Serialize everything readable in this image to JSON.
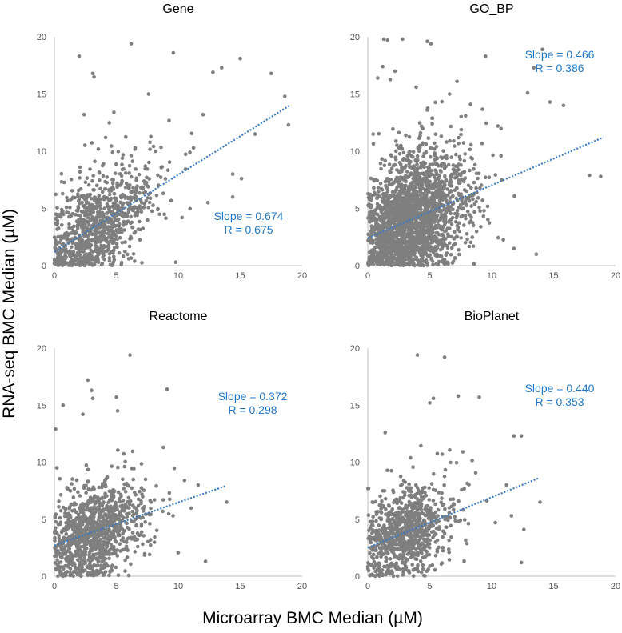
{
  "figure": {
    "ylabel": "RNA-seq BMC Median (µM)",
    "xlabel": "Microarray BMC Median (µM)",
    "colors": {
      "points": "#7f7f7f",
      "trend": "#3a7cc4",
      "stats": "#1f77c8",
      "axis": "#bfbfbf"
    }
  },
  "chart_data": [
    {
      "type": "scatter",
      "title": "Gene",
      "xlim": [
        0,
        20
      ],
      "ylim": [
        0,
        20
      ],
      "xticks": [
        0,
        5,
        10,
        15,
        20
      ],
      "yticks": [
        0,
        5,
        10,
        15,
        20
      ],
      "slope_text": "Slope = 0.674",
      "r_text": "R = 0.675",
      "trend": {
        "x": [
          0,
          19
        ],
        "y": [
          1.2,
          14.0
        ]
      },
      "cloud": {
        "count": 900,
        "seed": 11,
        "x_mean": 3.5,
        "x_sd": 2.6,
        "noise": 2.4
      },
      "points": [
        [
          6.2,
          19.4
        ],
        [
          9.6,
          18.6
        ],
        [
          2.0,
          18.3
        ],
        [
          3.1,
          16.8
        ],
        [
          3.2,
          16.5
        ],
        [
          15.0,
          18.1
        ],
        [
          13.5,
          17.3
        ],
        [
          12.8,
          16.9
        ],
        [
          17.5,
          16.8
        ],
        [
          2.4,
          13.2
        ],
        [
          4.8,
          13.4
        ],
        [
          7.6,
          15.0
        ],
        [
          12.0,
          13.2
        ],
        [
          16.2,
          11.5
        ],
        [
          18.9,
          12.3
        ],
        [
          18.6,
          14.8
        ],
        [
          14.4,
          8.0
        ],
        [
          15.1,
          7.6
        ],
        [
          12.4,
          5.5
        ],
        [
          9.8,
          0.3
        ],
        [
          6.0,
          0.6
        ],
        [
          5.4,
          0.1
        ],
        [
          10.3,
          4.2
        ],
        [
          14.4,
          6.0
        ]
      ]
    },
    {
      "type": "scatter",
      "title": "GO_BP",
      "xlim": [
        0,
        20
      ],
      "ylim": [
        0,
        20
      ],
      "xticks": [
        0,
        5,
        10,
        15,
        20
      ],
      "yticks": [
        0,
        5,
        10,
        15,
        20
      ],
      "slope_text": "Slope = 0.466",
      "r_text": "R = 0.386",
      "trend": {
        "x": [
          0,
          19
        ],
        "y": [
          2.4,
          11.2
        ]
      },
      "cloud": {
        "count": 2200,
        "seed": 23,
        "x_mean": 3.5,
        "x_sd": 2.4,
        "noise": 3.0
      },
      "points": [
        [
          1.3,
          19.8
        ],
        [
          1.6,
          19.7
        ],
        [
          2.8,
          19.8
        ],
        [
          5.1,
          19.4
        ],
        [
          1.2,
          17.4
        ],
        [
          2.2,
          17.0
        ],
        [
          9.5,
          18.3
        ],
        [
          13.4,
          17.3
        ],
        [
          14.1,
          18.9
        ],
        [
          0.8,
          16.4
        ],
        [
          3.9,
          15.6
        ],
        [
          6.6,
          15.0
        ],
        [
          12.9,
          15.1
        ],
        [
          14.7,
          14.3
        ],
        [
          15.8,
          14.0
        ],
        [
          17.9,
          7.9
        ],
        [
          18.8,
          7.8
        ],
        [
          11.8,
          1.5
        ],
        [
          13.6,
          1.0
        ],
        [
          10.5,
          12.2
        ],
        [
          8.3,
          14.1
        ],
        [
          7.2,
          16.1
        ]
      ]
    },
    {
      "type": "scatter",
      "title": "Reactome",
      "xlim": [
        0,
        20
      ],
      "ylim": [
        0,
        20
      ],
      "xticks": [
        0,
        5,
        10,
        15,
        20
      ],
      "yticks": [
        0,
        5,
        10,
        15,
        20
      ],
      "slope_text": "Slope = 0.372",
      "r_text": "R = 0.298",
      "trend": {
        "x": [
          0,
          13.8
        ],
        "y": [
          2.7,
          7.9
        ]
      },
      "cloud": {
        "count": 1100,
        "seed": 37,
        "x_mean": 3.2,
        "x_sd": 2.2,
        "noise": 2.2
      },
      "points": [
        [
          6.1,
          19.4
        ],
        [
          2.7,
          17.2
        ],
        [
          3.0,
          16.3
        ],
        [
          3.1,
          15.6
        ],
        [
          0.7,
          15.0
        ],
        [
          2.3,
          14.2
        ],
        [
          5.0,
          15.7
        ],
        [
          5.1,
          14.5
        ],
        [
          9.1,
          16.4
        ],
        [
          0.1,
          12.9
        ],
        [
          13.9,
          6.5
        ],
        [
          11.6,
          8.0
        ],
        [
          10.5,
          8.4
        ],
        [
          8.8,
          11.3
        ],
        [
          0.2,
          9.5
        ],
        [
          12.2,
          1.3
        ]
      ]
    },
    {
      "type": "scatter",
      "title": "BioPlanet",
      "xlim": [
        0,
        20
      ],
      "ylim": [
        0,
        20
      ],
      "xticks": [
        0,
        5,
        10,
        15,
        20
      ],
      "yticks": [
        0,
        5,
        10,
        15,
        20
      ],
      "slope_text": "Slope = 0.440",
      "r_text": "R = 0.353",
      "trend": {
        "x": [
          0,
          13.8
        ],
        "y": [
          2.5,
          8.6
        ]
      },
      "cloud": {
        "count": 900,
        "seed": 53,
        "x_mean": 3.1,
        "x_sd": 2.1,
        "noise": 2.1
      },
      "points": [
        [
          4.0,
          19.4
        ],
        [
          6.2,
          19.2
        ],
        [
          5.3,
          15.6
        ],
        [
          5.0,
          15.2
        ],
        [
          7.3,
          15.8
        ],
        [
          9.0,
          15.7
        ],
        [
          11.8,
          12.3
        ],
        [
          12.4,
          12.3
        ],
        [
          1.4,
          12.6
        ],
        [
          13.9,
          6.5
        ],
        [
          12.6,
          4.1
        ],
        [
          11.6,
          5.3
        ],
        [
          10.3,
          4.7
        ],
        [
          12.4,
          1.2
        ],
        [
          11.2,
          8.0
        ]
      ]
    }
  ]
}
